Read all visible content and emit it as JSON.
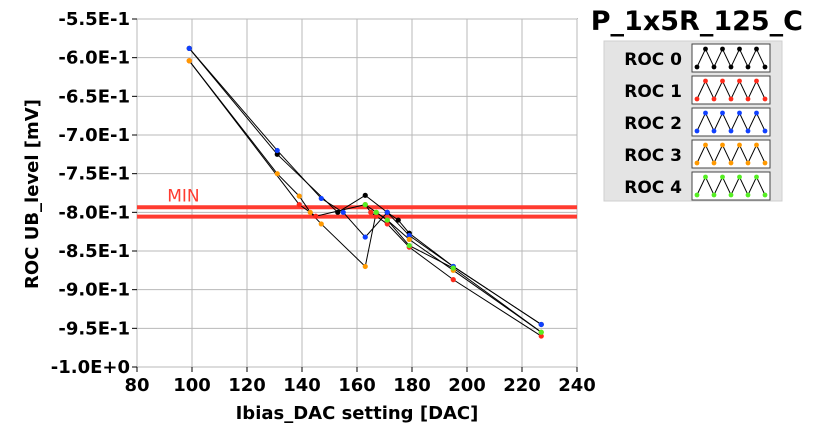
{
  "chart_data": {
    "type": "scatter",
    "title": "P_1x5R_125_C",
    "xlabel": "Ibias_DAC setting [DAC]",
    "ylabel": "ROC UB_level [mV]",
    "xlim": [
      80,
      240
    ],
    "ylim": [
      -1.0,
      -0.55
    ],
    "x_ticks": [
      80,
      100,
      120,
      140,
      160,
      180,
      200,
      220,
      240
    ],
    "x_tick_labels": [
      "80",
      "100",
      "120",
      "140",
      "160",
      "180",
      "200",
      "220",
      "240"
    ],
    "y_ticks": [
      -0.55,
      -0.6,
      -0.65,
      -0.7,
      -0.75,
      -0.8,
      -0.85,
      -0.9,
      -0.95,
      -1.0
    ],
    "y_tick_labels": [
      "-5.5E-1",
      "-6.0E-1",
      "-6.5E-1",
      "-7.0E-1",
      "-7.5E-1",
      "-8.0E-1",
      "-8.5E-1",
      "-9.0E-1",
      "-9.5E-1",
      "-1.0E+0"
    ],
    "grid": true,
    "legend_position": "top-right",
    "threshold": {
      "label": "MIN",
      "band": [
        -0.7935,
        -0.8055
      ],
      "color": "#ff3b30"
    },
    "series": [
      {
        "name": "ROC 0",
        "color": "#000000",
        "x": [
          99,
          131,
          153,
          163,
          171,
          175,
          179,
          195,
          227
        ],
        "y": [
          -0.588,
          -0.725,
          -0.8,
          -0.778,
          -0.8,
          -0.81,
          -0.827,
          -0.87,
          -0.945
        ]
      },
      {
        "name": "ROC 1",
        "color": "#ff2a1a",
        "x": [
          99,
          139,
          145,
          163,
          165,
          167,
          171,
          179,
          195,
          227
        ],
        "y": [
          -0.604,
          -0.79,
          -0.805,
          -0.79,
          -0.8,
          -0.805,
          -0.815,
          -0.845,
          -0.887,
          -0.96
        ]
      },
      {
        "name": "ROC 2",
        "color": "#1040ff",
        "x": [
          99,
          131,
          147,
          155,
          163,
          171,
          179,
          195,
          227
        ],
        "y": [
          -0.588,
          -0.72,
          -0.782,
          -0.8,
          -0.832,
          -0.8,
          -0.83,
          -0.87,
          -0.945
        ]
      },
      {
        "name": "ROC 3",
        "color": "#ff9900",
        "x": [
          99,
          131,
          139,
          143,
          147,
          163,
          167,
          171,
          179,
          195,
          227
        ],
        "y": [
          -0.604,
          -0.75,
          -0.779,
          -0.8,
          -0.815,
          -0.87,
          -0.8,
          -0.81,
          -0.835,
          -0.875,
          -0.955
        ]
      },
      {
        "name": "ROC 4",
        "color": "#55ee22",
        "x": [
          163,
          167,
          171,
          179,
          195,
          227
        ],
        "y": [
          -0.79,
          -0.8,
          -0.81,
          -0.843,
          -0.872,
          -0.955
        ]
      }
    ]
  },
  "legend": {
    "items": [
      {
        "name": "ROC 0",
        "color": "#000000"
      },
      {
        "name": "ROC 1",
        "color": "#ff2a1a"
      },
      {
        "name": "ROC 2",
        "color": "#1040ff"
      },
      {
        "name": "ROC 3",
        "color": "#ff9900"
      },
      {
        "name": "ROC 4",
        "color": "#55ee22"
      }
    ]
  }
}
